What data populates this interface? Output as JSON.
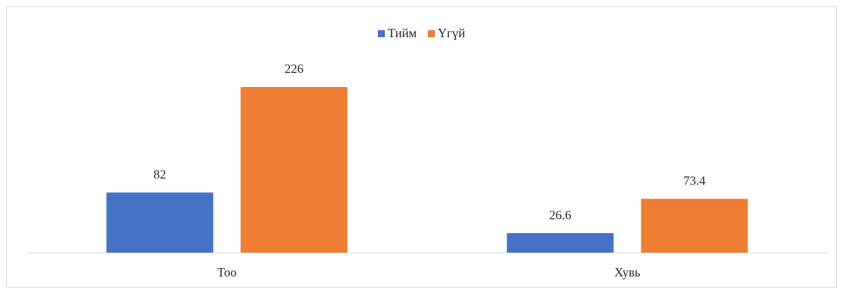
{
  "chart_data": {
    "type": "bar",
    "categories": [
      "Тоо",
      "Хувь"
    ],
    "series": [
      {
        "name": "Тийм",
        "color": "#4472c4",
        "values": [
          82,
          26.6
        ]
      },
      {
        "name": "Үгүй",
        "color": "#ed7d31",
        "values": [
          226,
          73.4
        ]
      }
    ],
    "legend": "top"
  }
}
